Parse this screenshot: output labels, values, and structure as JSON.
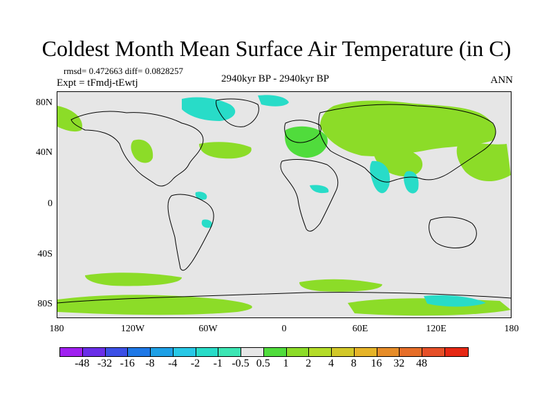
{
  "title": "Coldest Month Mean Surface Air Temperature (in C)",
  "stats": "rmsd= 0.472663 diff= 0.0828257",
  "experiment": "Expt = tFmdj-tEwtj",
  "period": "2940kyr BP - 2940kyr BP",
  "season": "ANN",
  "map": {
    "lon_range": [
      -180,
      180
    ],
    "lat_range": [
      -90,
      90
    ],
    "lat_ticks": [
      {
        "value": 80,
        "label": "80N"
      },
      {
        "value": 40,
        "label": "40N"
      },
      {
        "value": 0,
        "label": "0"
      },
      {
        "value": -40,
        "label": "40S"
      },
      {
        "value": -80,
        "label": "80S"
      }
    ],
    "lon_ticks": [
      {
        "value": -180,
        "label": "180"
      },
      {
        "value": -120,
        "label": "120W"
      },
      {
        "value": -60,
        "label": "60W"
      },
      {
        "value": 0,
        "label": "0"
      },
      {
        "value": 60,
        "label": "60E"
      },
      {
        "value": 120,
        "label": "120E"
      },
      {
        "value": 180,
        "label": "180"
      }
    ],
    "background_color": "#e6e6e6"
  },
  "colorbar": {
    "colors": [
      "#a020f0",
      "#6a2ee8",
      "#3c50e6",
      "#1e78e6",
      "#1ea0e6",
      "#28c8e6",
      "#28dcc8",
      "#3ce6b4",
      "#e6e6e6",
      "#50dc3c",
      "#8cdc28",
      "#b4dc28",
      "#d2c828",
      "#e6b428",
      "#e68c28",
      "#e66e28",
      "#e65028",
      "#e62814"
    ],
    "labels": [
      "-48",
      "-32",
      "-16",
      "-8",
      "-4",
      "-2",
      "-1",
      "-0.5",
      "0.5",
      "1",
      "2",
      "4",
      "8",
      "16",
      "32",
      "48"
    ]
  }
}
